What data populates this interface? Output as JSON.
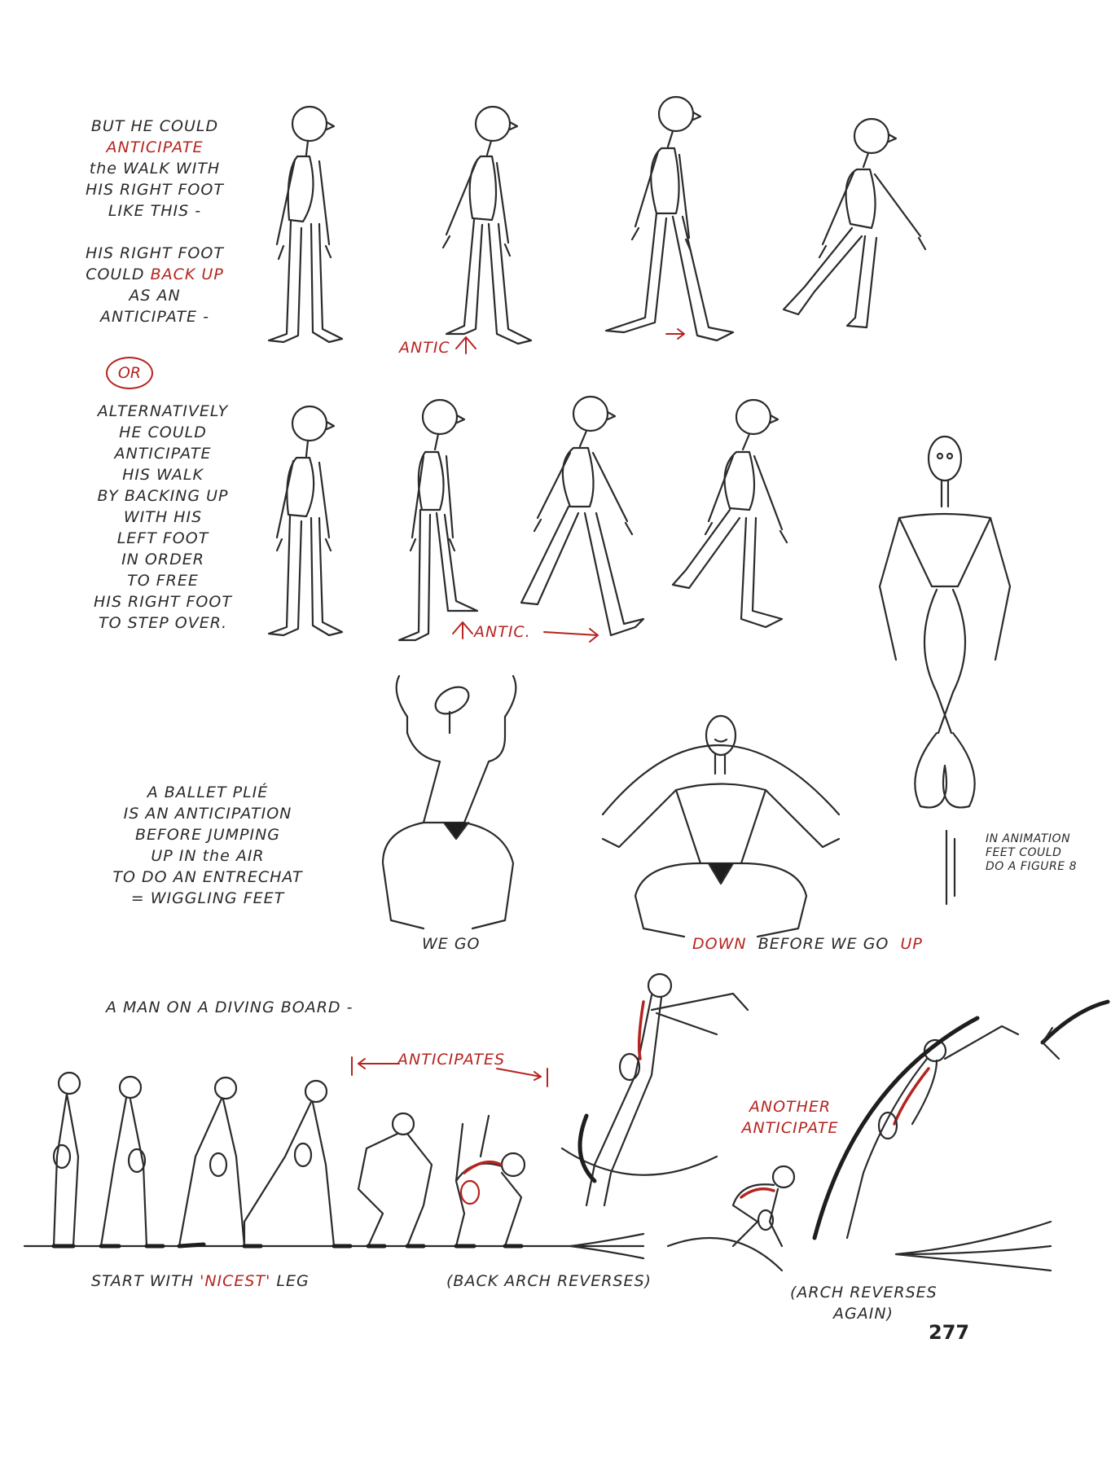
{
  "section1": {
    "lines": [
      "BUT HE COULD",
      "ANTICIPATE",
      "the WALK WITH",
      "HIS RIGHT FOOT",
      "LIKE THIS -"
    ],
    "lines2": [
      "HIS RIGHT FOOT",
      "COULD",
      "BACK UP",
      "AS AN",
      "ANTICIPATE -"
    ],
    "antic_label": "ANTIC"
  },
  "or_label": "OR",
  "section2": {
    "lines": [
      "ALTERNATIVELY",
      "HE COULD",
      "ANTICIPATE",
      "HIS WALK",
      "BY BACKING UP",
      "WITH HIS",
      "LEFT FOOT",
      "IN ORDER",
      "TO FREE",
      "HIS RIGHT FOOT",
      "TO STEP OVER."
    ],
    "antic_label": "ANTIC."
  },
  "section3": {
    "lines": [
      "A BALLET PLIÉ",
      "IS AN ANTICIPATION",
      "BEFORE JUMPING",
      "UP IN the AIR",
      "TO DO AN ENTRECHAT",
      "= WIGGLING FEET"
    ],
    "we_go": "WE GO",
    "down": "DOWN",
    "before_we_go": "BEFORE WE GO",
    "up": "UP",
    "note": [
      "IN ANIMATION",
      "FEET COULD",
      "DO A FIGURE 8"
    ]
  },
  "section4": {
    "title": "A MAN ON A DIVING BOARD -",
    "anticipates": "ANTICIPATES",
    "another_anticipate": [
      "ANOTHER",
      "ANTICIPATE"
    ],
    "start_with": "START WITH",
    "nicest": "'NICEST'",
    "leg": "LEG",
    "back_arch": "(BACK ARCH REVERSES)",
    "arch_again": [
      "(ARCH REVERSES",
      "AGAIN)"
    ]
  },
  "page_number": "277"
}
